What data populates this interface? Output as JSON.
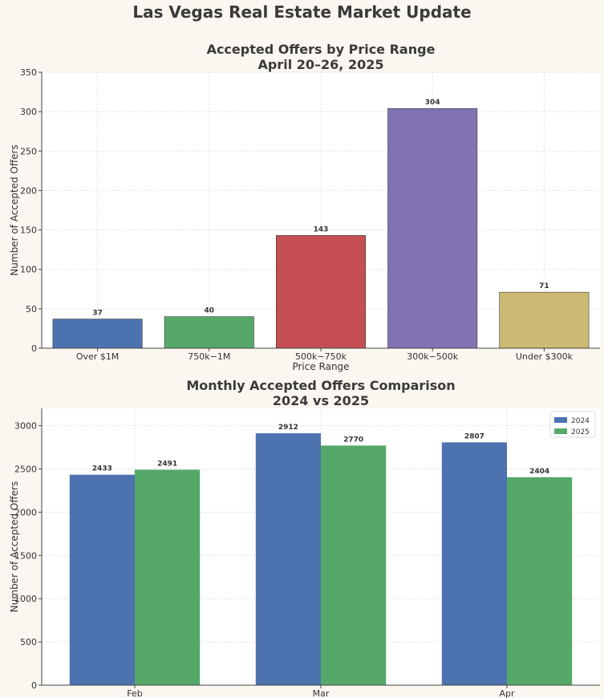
{
  "page_title": "Las Vegas Real Estate Market Update",
  "chart_data": [
    {
      "type": "bar",
      "title": "Accepted Offers by Price Range",
      "subtitle": "April 20–26, 2025",
      "xlabel": "Price Range",
      "ylabel": "Number of Accepted Offers",
      "categories": [
        "Over $1M",
        "750k−1M",
        "500k−750k",
        "300k−500k",
        "Under $300k"
      ],
      "values": [
        37,
        40,
        143,
        304,
        71
      ],
      "colors": [
        "#4c72b0",
        "#55a868",
        "#c44e52",
        "#8172b2",
        "#ccb974"
      ],
      "ylim": [
        0,
        350
      ],
      "yticks": [
        0,
        50,
        100,
        150,
        200,
        250,
        300,
        350
      ],
      "grid": true
    },
    {
      "type": "bar",
      "title": "Monthly Accepted Offers Comparison",
      "subtitle": "2024 vs 2025",
      "xlabel": "",
      "ylabel": "Number of Accepted Offers",
      "categories": [
        "Feb",
        "Mar",
        "Apr"
      ],
      "series": [
        {
          "name": "2024",
          "values": [
            2433,
            2912,
            2807
          ],
          "color": "#4c72b0"
        },
        {
          "name": "2025",
          "values": [
            2491,
            2770,
            2404
          ],
          "color": "#55a868"
        }
      ],
      "ylim": [
        0,
        3200
      ],
      "yticks": [
        0,
        500,
        1000,
        1500,
        2000,
        2500,
        3000
      ],
      "legend": "top-right",
      "grid": true
    }
  ]
}
